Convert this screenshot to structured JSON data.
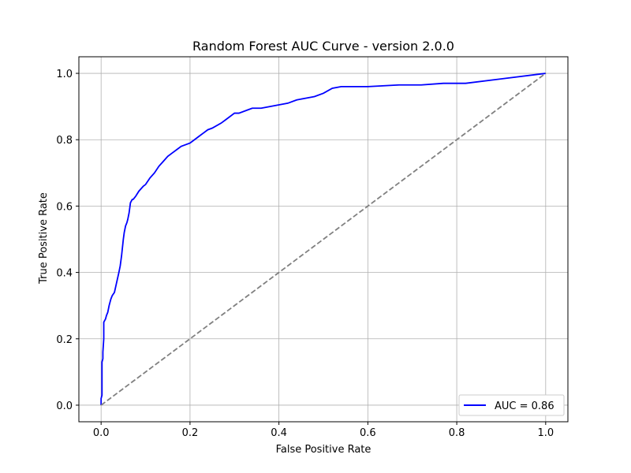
{
  "chart_data": {
    "type": "line",
    "title": "Random Forest AUC Curve - version 2.0.0",
    "xlabel": "False Positive Rate",
    "ylabel": "True Positive Rate",
    "xlim": [
      -0.05,
      1.05
    ],
    "ylim": [
      -0.05,
      1.05
    ],
    "x_ticks": [
      0.0,
      0.2,
      0.4,
      0.6,
      0.8,
      1.0
    ],
    "y_ticks": [
      0.0,
      0.2,
      0.4,
      0.6,
      0.8,
      1.0
    ],
    "x_tick_labels": [
      "0.0",
      "0.2",
      "0.4",
      "0.6",
      "0.8",
      "1.0"
    ],
    "y_tick_labels": [
      "0.0",
      "0.2",
      "0.4",
      "0.6",
      "0.8",
      "1.0"
    ],
    "grid": true,
    "legend_position": "lower-right",
    "series": [
      {
        "name": "AUC = 0.86",
        "color": "#0000ff",
        "style": "solid",
        "x": [
          0.0,
          0.0,
          0.002,
          0.002,
          0.004,
          0.004,
          0.006,
          0.006,
          0.01,
          0.012,
          0.015,
          0.018,
          0.022,
          0.025,
          0.03,
          0.035,
          0.04,
          0.043,
          0.046,
          0.05,
          0.052,
          0.055,
          0.058,
          0.06,
          0.063,
          0.066,
          0.07,
          0.072,
          0.075,
          0.078,
          0.085,
          0.095,
          0.1,
          0.11,
          0.12,
          0.13,
          0.14,
          0.15,
          0.16,
          0.17,
          0.18,
          0.19,
          0.2,
          0.21,
          0.22,
          0.23,
          0.24,
          0.25,
          0.27,
          0.28,
          0.3,
          0.31,
          0.33,
          0.34,
          0.36,
          0.38,
          0.4,
          0.42,
          0.44,
          0.46,
          0.48,
          0.5,
          0.52,
          0.54,
          0.6,
          0.67,
          0.72,
          0.77,
          0.82,
          1.0
        ],
        "y": [
          0.0,
          0.02,
          0.03,
          0.13,
          0.14,
          0.16,
          0.2,
          0.25,
          0.26,
          0.27,
          0.28,
          0.3,
          0.32,
          0.33,
          0.34,
          0.37,
          0.4,
          0.42,
          0.45,
          0.5,
          0.52,
          0.54,
          0.55,
          0.56,
          0.58,
          0.61,
          0.62,
          0.62,
          0.625,
          0.63,
          0.645,
          0.66,
          0.665,
          0.685,
          0.7,
          0.72,
          0.735,
          0.75,
          0.76,
          0.77,
          0.78,
          0.785,
          0.79,
          0.8,
          0.81,
          0.82,
          0.83,
          0.835,
          0.85,
          0.86,
          0.88,
          0.88,
          0.89,
          0.895,
          0.895,
          0.9,
          0.905,
          0.91,
          0.92,
          0.925,
          0.93,
          0.94,
          0.955,
          0.96,
          0.96,
          0.965,
          0.965,
          0.97,
          0.97,
          1.0
        ]
      },
      {
        "name": "",
        "color": "#808080",
        "style": "dashed",
        "x": [
          0.0,
          1.0
        ],
        "y": [
          0.0,
          1.0
        ]
      }
    ],
    "legend": [
      {
        "label": "AUC = 0.86",
        "color": "#0000ff"
      }
    ]
  }
}
